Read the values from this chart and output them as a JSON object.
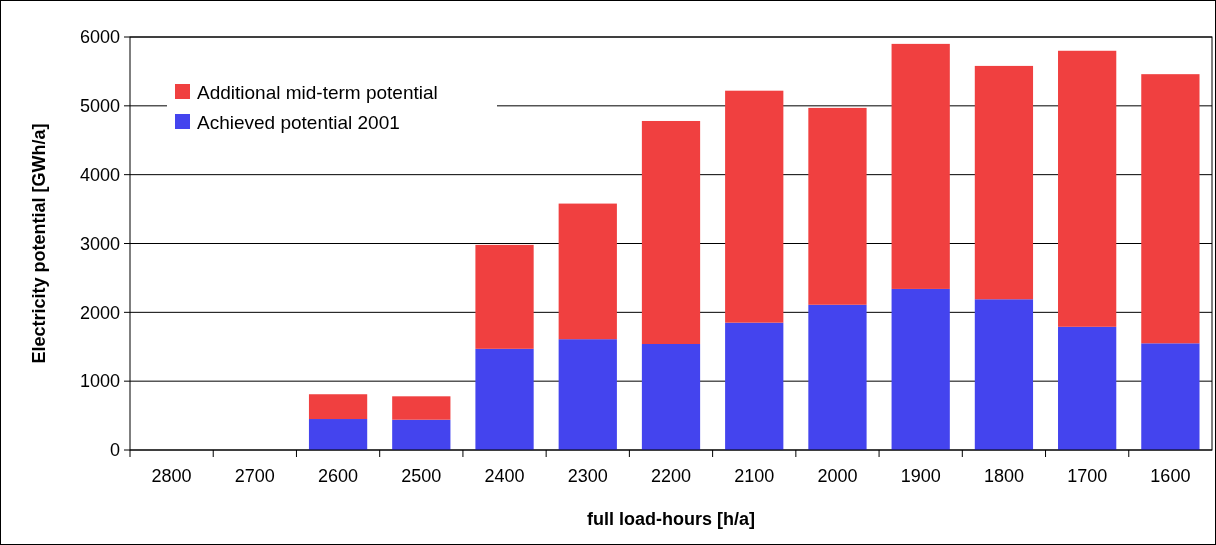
{
  "chart_data": {
    "type": "bar",
    "stacked": true,
    "xlabel": "full load-hours [h/a]",
    "ylabel": "Electricity potential [GWh/a]",
    "categories": [
      "2800",
      "2700",
      "2600",
      "2500",
      "2400",
      "2300",
      "2200",
      "2100",
      "2000",
      "1900",
      "1800",
      "1700",
      "1600"
    ],
    "series": [
      {
        "name": "Achieved potential 2001",
        "color": "#4444ee",
        "values": [
          0,
          0,
          450,
          440,
          1470,
          1610,
          1540,
          1850,
          2110,
          2340,
          2190,
          1790,
          1550
        ]
      },
      {
        "name": "Additional mid-term potential",
        "color": "#f04040",
        "values": [
          0,
          0,
          360,
          340,
          1510,
          1970,
          3240,
          3370,
          2860,
          3560,
          3390,
          4010,
          3910
        ]
      }
    ],
    "ylim": [
      0,
      6000
    ],
    "yticks": [
      0,
      1000,
      2000,
      3000,
      4000,
      5000,
      6000
    ],
    "grid": "y",
    "legend": "top left"
  }
}
